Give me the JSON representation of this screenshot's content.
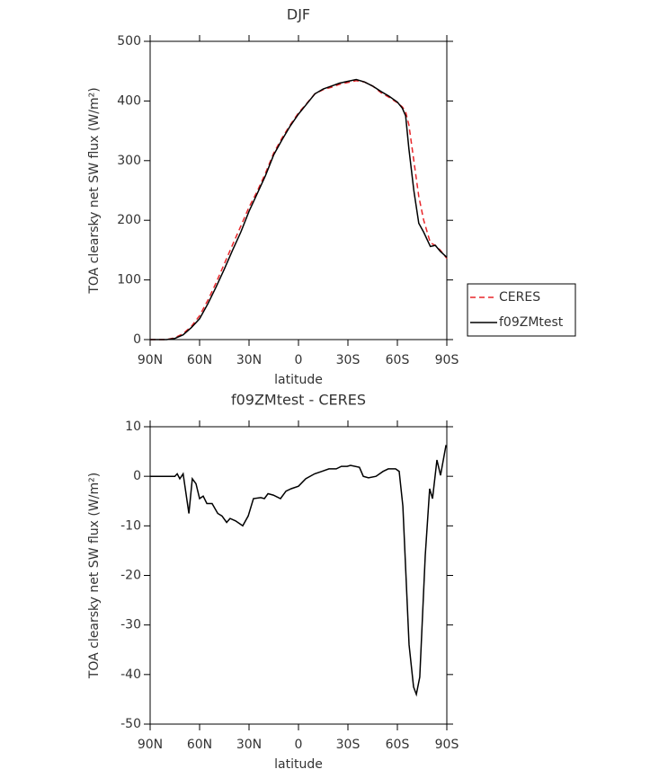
{
  "chart_data": [
    {
      "type": "line",
      "title": "DJF",
      "xlabel": "latitude",
      "ylabel": "TOA clearsky net SW flux (W/m²)",
      "x": [
        90,
        85,
        80,
        75,
        70,
        65,
        60,
        55,
        50,
        45,
        40,
        35,
        30,
        25,
        20,
        15,
        10,
        5,
        0,
        -5,
        -10,
        -15,
        -20,
        -25,
        -30,
        -35,
        -40,
        -45,
        -50,
        -55,
        -60,
        -63,
        -65,
        -67,
        -70,
        -73,
        -76,
        -80,
        -83,
        -86,
        -90
      ],
      "series": [
        {
          "name": "CERES",
          "color": "#e8262a",
          "dash": true,
          "values": [
            0,
            0,
            0,
            3,
            10,
            22,
            40,
            66,
            95,
            127,
            159,
            190,
            222,
            249,
            279,
            313,
            338,
            360,
            380,
            396,
            412,
            419,
            423,
            428,
            431,
            434,
            432,
            425,
            414,
            406,
            397,
            390,
            382,
            360,
            300,
            240,
            200,
            162,
            158,
            150,
            136
          ]
        },
        {
          "name": "f09ZMtest",
          "color": "#000000",
          "dash": false,
          "values": [
            0,
            0,
            0,
            2,
            8,
            20,
            35,
            60,
            88,
            118,
            150,
            180,
            215,
            245,
            275,
            310,
            335,
            358,
            378,
            395,
            412,
            420,
            425,
            430,
            433,
            436,
            432,
            425,
            416,
            408,
            398,
            388,
            375,
            320,
            250,
            195,
            180,
            156,
            158,
            148,
            138
          ]
        }
      ],
      "xlim": [
        90,
        -90
      ],
      "xticks": [
        {
          "value": 90,
          "label": "90N"
        },
        {
          "value": 60,
          "label": "60N"
        },
        {
          "value": 30,
          "label": "30N"
        },
        0,
        {
          "value": -30,
          "label": "30S"
        },
        {
          "value": -60,
          "label": "60S"
        },
        {
          "value": -90,
          "label": "90S"
        }
      ],
      "ylim": [
        0,
        500
      ],
      "yticks": [
        0,
        100,
        200,
        300,
        400,
        500
      ],
      "legend": "right"
    },
    {
      "type": "line",
      "title": "f09ZMtest - CERES",
      "xlabel": "latitude",
      "ylabel": "TOA clearsky net SW flux (W/m²)",
      "x": [
        90,
        80,
        75,
        73.6,
        72,
        70,
        66.5,
        64.4,
        62.2,
        60,
        57.8,
        55.6,
        52.4,
        49,
        46.4,
        43.6,
        41.5,
        38.2,
        33.8,
        30.5,
        27.3,
        22.9,
        20.7,
        18.5,
        15.3,
        10.9,
        7.6,
        4.4,
        0,
        -4.4,
        -9.8,
        -14.2,
        -18.5,
        -22.9,
        -26,
        -29.5,
        -31.6,
        -37,
        -39.3,
        -42.5,
        -47,
        -51.3,
        -54.5,
        -58.9,
        -61.1,
        -63.3,
        -67.1,
        -69.8,
        -71.5,
        -73.6,
        -76.9,
        -79.6,
        -81.3,
        -84,
        -86.2,
        -89.5
      ],
      "series": [
        {
          "name": "f09ZMtest - CERES",
          "color": "#000000",
          "dash": false,
          "values": [
            0,
            0,
            0,
            0.5,
            -0.5,
            0.5,
            -7.5,
            -0.5,
            -1.5,
            -4.5,
            -4,
            -5.5,
            -5.5,
            -7.5,
            -8,
            -9.3,
            -8.5,
            -9,
            -10,
            -8,
            -4.5,
            -4.3,
            -4.5,
            -3.5,
            -3.8,
            -4.5,
            -3,
            -2.5,
            -2,
            -0.5,
            0.5,
            1,
            1.5,
            1.5,
            2,
            2,
            2.2,
            1.8,
            0,
            -0.3,
            0,
            1,
            1.5,
            1.5,
            1,
            -6,
            -34,
            -42.5,
            -44,
            -40.5,
            -16,
            -2.5,
            -4.5,
            3.3,
            0.2,
            6.3
          ]
        }
      ],
      "xlim": [
        90,
        -90
      ],
      "xticks": [
        {
          "value": 90,
          "label": "90N"
        },
        {
          "value": 60,
          "label": "60N"
        },
        {
          "value": 30,
          "label": "30N"
        },
        0,
        {
          "value": -30,
          "label": "30S"
        },
        {
          "value": -60,
          "label": "60S"
        },
        {
          "value": -90,
          "label": "90S"
        }
      ],
      "ylim": [
        -50,
        10
      ],
      "yticks": [
        -50,
        -40,
        -30,
        -20,
        -10,
        0,
        10
      ]
    }
  ]
}
